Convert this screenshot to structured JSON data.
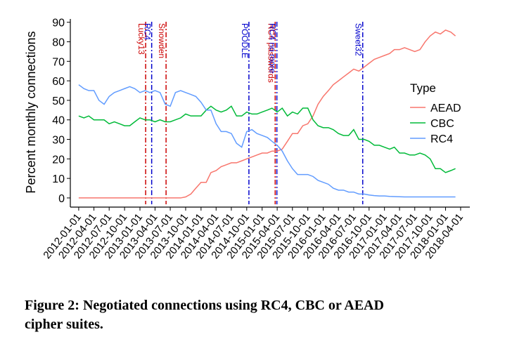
{
  "chart_data": {
    "type": "line",
    "y_label": "Percent monthly connections",
    "legend_title": "Type",
    "legend_position": "right",
    "xlim": [
      "2011-11-12",
      "2018-05-26"
    ],
    "ylim": [
      -4.7,
      91.7
    ],
    "yticks": [
      0,
      10,
      20,
      30,
      40,
      50,
      60,
      70,
      80,
      90
    ],
    "xticks": [
      "2012-01-01",
      "2012-04-01",
      "2012-07-01",
      "2012-10-01",
      "2013-01-01",
      "2013-04-01",
      "2013-07-01",
      "2013-10-01",
      "2014-01-01",
      "2014-04-01",
      "2014-07-01",
      "2014-10-01",
      "2015-01-01",
      "2015-04-01",
      "2015-07-01",
      "2015-10-01",
      "2016-01-01",
      "2016-04-01",
      "2016-07-01",
      "2016-10-01",
      "2017-01-01",
      "2017-04-01",
      "2017-07-01",
      "2017-10-01",
      "2018-01-01",
      "2018-04-01"
    ],
    "x": [
      "2012-01-01",
      "2012-02-01",
      "2012-03-01",
      "2012-04-01",
      "2012-05-01",
      "2012-06-01",
      "2012-07-01",
      "2012-08-01",
      "2012-09-01",
      "2012-10-01",
      "2012-11-01",
      "2012-12-01",
      "2013-01-01",
      "2013-02-01",
      "2013-03-01",
      "2013-04-01",
      "2013-05-01",
      "2013-06-01",
      "2013-07-01",
      "2013-08-01",
      "2013-09-01",
      "2013-10-01",
      "2013-11-01",
      "2013-12-01",
      "2014-01-01",
      "2014-02-01",
      "2014-03-01",
      "2014-04-01",
      "2014-05-01",
      "2014-06-01",
      "2014-07-01",
      "2014-08-01",
      "2014-09-01",
      "2014-10-01",
      "2014-11-01",
      "2014-12-01",
      "2015-01-01",
      "2015-02-01",
      "2015-03-01",
      "2015-04-01",
      "2015-05-01",
      "2015-06-01",
      "2015-07-01",
      "2015-08-01",
      "2015-09-01",
      "2015-10-01",
      "2015-11-01",
      "2015-12-01",
      "2016-01-01",
      "2016-02-01",
      "2016-03-01",
      "2016-04-01",
      "2016-05-01",
      "2016-06-01",
      "2016-07-01",
      "2016-08-01",
      "2016-09-01",
      "2016-10-01",
      "2016-11-01",
      "2016-12-01",
      "2017-01-01",
      "2017-02-01",
      "2017-03-01",
      "2017-04-01",
      "2017-05-01",
      "2017-06-01",
      "2017-07-01",
      "2017-08-01",
      "2017-09-01",
      "2017-10-01",
      "2017-11-01",
      "2017-12-01",
      "2018-01-01",
      "2018-02-01",
      "2018-03-01"
    ],
    "series": [
      {
        "name": "AEAD",
        "color": "#F8766D",
        "values": [
          0,
          0,
          0,
          0,
          0,
          0,
          0,
          0,
          0,
          0,
          0,
          0,
          0,
          0,
          0,
          0,
          0,
          0,
          0,
          0,
          0,
          0.5,
          2,
          5,
          8,
          8,
          13,
          14,
          16,
          17,
          18,
          18,
          19,
          20,
          21,
          22,
          23,
          23,
          24,
          24,
          25,
          29,
          33,
          33,
          37,
          38,
          42,
          48,
          52,
          55,
          58,
          60,
          62,
          64,
          66,
          65,
          67,
          69,
          71,
          72,
          73,
          74,
          76,
          76,
          77,
          76,
          75,
          76,
          80,
          83,
          85,
          84,
          86,
          85,
          83
        ]
      },
      {
        "name": "CBC",
        "color": "#00BA38",
        "values": [
          42,
          41,
          42,
          40,
          40,
          40,
          38,
          39,
          38,
          37,
          37,
          39,
          41,
          40,
          40,
          39,
          40,
          39,
          39,
          40,
          41,
          43,
          42,
          42,
          42,
          45,
          47,
          45,
          44,
          45,
          47,
          42,
          42,
          44,
          43,
          43,
          44,
          45,
          46,
          44,
          46,
          42,
          44,
          43,
          46,
          46,
          40,
          37,
          36,
          36,
          35,
          33,
          32,
          32,
          35,
          30,
          30,
          29,
          27,
          27,
          26,
          25,
          26,
          23,
          23,
          22,
          22,
          23,
          22,
          20,
          15,
          15,
          13,
          14,
          15
        ]
      },
      {
        "name": "RC4",
        "color": "#619CFF",
        "values": [
          58,
          56,
          55,
          55,
          50,
          48,
          52,
          54,
          55,
          56,
          57,
          56,
          54,
          55,
          54,
          55,
          54,
          48,
          47,
          54,
          55,
          54,
          53,
          52,
          49,
          45,
          45,
          38,
          34,
          34,
          33,
          28,
          26,
          34,
          35,
          33,
          32,
          31,
          29,
          27,
          24,
          19,
          15,
          12,
          12,
          12,
          11,
          9,
          8,
          7,
          5,
          4,
          4,
          3,
          3,
          2,
          2,
          1.5,
          1.2,
          1,
          1,
          0.8,
          0.7,
          0.6,
          0.5,
          0.5,
          0.5,
          0.5,
          0.5,
          0.5,
          0.5,
          0.5,
          0.5,
          0.5,
          0.5
        ]
      }
    ],
    "annotations": [
      {
        "label": "Lucky13",
        "x": "2013-02-04",
        "color": "#cc0000"
      },
      {
        "label": "RC4",
        "x": "2013-03-12",
        "color": "#0000cc"
      },
      {
        "label": "Snowden",
        "x": "2013-06-06",
        "color": "#cc0000"
      },
      {
        "label": "POODLE",
        "x": "2014-10-14",
        "color": "#0000cc"
      },
      {
        "label": "RC4 passwords",
        "x": "2015-03-20",
        "color": "#cc0000"
      },
      {
        "label": "RC4 no more",
        "x": "2015-03-30",
        "color": "#0000cc"
      },
      {
        "label": "Sweet32",
        "x": "2016-08-24",
        "color": "#0000cc"
      }
    ],
    "caption": [
      "Figure 2: Negotiated connections using RC4, CBC or AEAD",
      "cipher suites."
    ]
  }
}
